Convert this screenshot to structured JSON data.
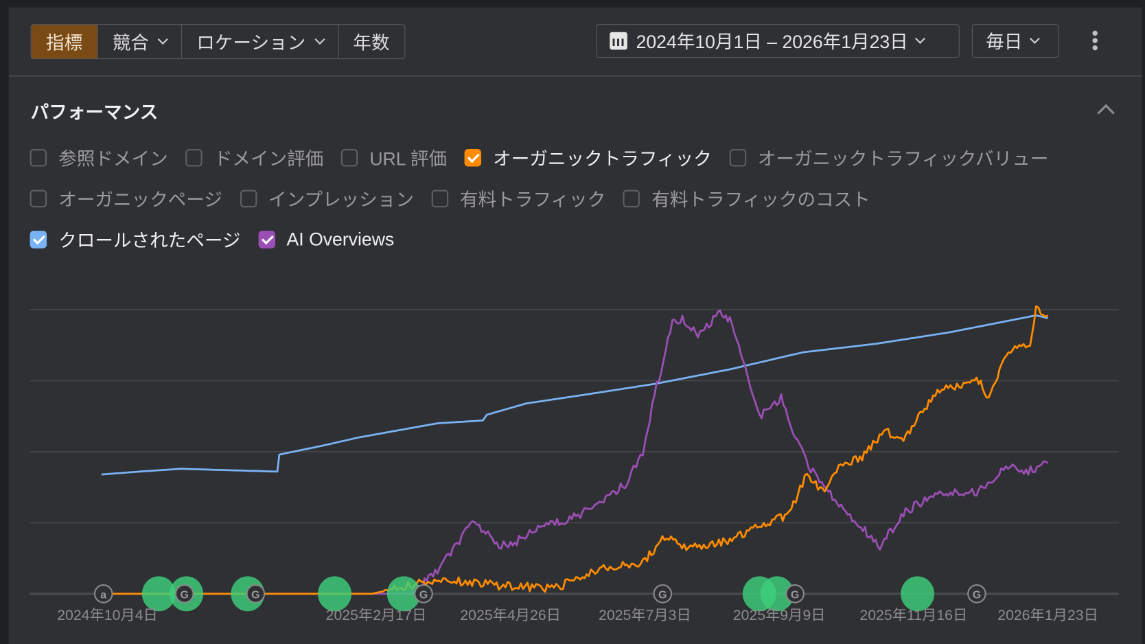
{
  "toolbar": {
    "tabs": [
      {
        "label": "指標",
        "active": true
      },
      {
        "label": "競合",
        "dropdown": true
      },
      {
        "label": "ロケーション",
        "dropdown": true
      },
      {
        "label": "年数"
      }
    ],
    "date_range": "2024年10月1日 – 2026年1月23日",
    "interval": "毎日",
    "icons": {
      "calendar": "calendar-icon",
      "more": "more-vertical-icon"
    }
  },
  "section": {
    "title": "パフォーマンス"
  },
  "metrics": [
    [
      {
        "label": "参照ドメイン",
        "checked": false
      },
      {
        "label": "ドメイン評価",
        "checked": false
      },
      {
        "label": "URL 評価",
        "checked": false
      },
      {
        "label": "オーガニックトラフィック",
        "checked": true,
        "color": "#ff8c00"
      },
      {
        "label": "オーガニックトラフィックバリュー",
        "checked": false
      }
    ],
    [
      {
        "label": "オーガニックページ",
        "checked": false
      },
      {
        "label": "インプレッション",
        "checked": false
      },
      {
        "label": "有料トラフィック",
        "checked": false
      },
      {
        "label": "有料トラフィックのコスト",
        "checked": false
      }
    ],
    [
      {
        "label": "クロールされたページ",
        "checked": true,
        "color": "#7ab3f5"
      },
      {
        "label": "AI Overviews",
        "checked": true,
        "color": "#9b4fb5"
      }
    ]
  ],
  "chart_data": {
    "type": "line",
    "x_range": [
      "2024-10-01",
      "2026-01-23"
    ],
    "ylim": [
      0,
      100
    ],
    "y_scale_note": "relative",
    "grid": true,
    "xticks": [
      {
        "date": "2024-10-04",
        "label": "2024年10月4日"
      },
      {
        "date": "2025-02-17",
        "label": "2025年2月17日"
      },
      {
        "date": "2025-04-26",
        "label": "2025年4月26日"
      },
      {
        "date": "2025-07-03",
        "label": "2025年7月3日"
      },
      {
        "date": "2025-09-09",
        "label": "2025年9月9日"
      },
      {
        "date": "2025-11-16",
        "label": "2025年11月16日"
      },
      {
        "date": "2026-01-23",
        "label": "2026年1月23日"
      }
    ],
    "series": [
      {
        "name": "クロールされたページ",
        "color": "#7ab3f5",
        "points": [
          [
            "2024-10-01",
            42
          ],
          [
            "2024-10-20",
            43
          ],
          [
            "2024-11-10",
            44
          ],
          [
            "2024-12-29",
            43
          ],
          [
            "2024-12-30",
            49
          ],
          [
            "2025-01-20",
            52
          ],
          [
            "2025-02-08",
            55
          ],
          [
            "2025-03-20",
            60
          ],
          [
            "2025-04-12",
            61
          ],
          [
            "2025-04-14",
            63
          ],
          [
            "2025-05-04",
            67
          ],
          [
            "2025-06-02",
            70
          ],
          [
            "2025-07-09",
            74
          ],
          [
            "2025-08-15",
            79
          ],
          [
            "2025-09-21",
            85
          ],
          [
            "2025-10-28",
            88
          ],
          [
            "2025-12-04",
            92
          ],
          [
            "2026-01-17",
            98
          ],
          [
            "2026-01-23",
            97
          ]
        ]
      },
      {
        "name": "AI Overviews",
        "color": "#9b4fb5",
        "points": [
          [
            "2024-10-01",
            0
          ],
          [
            "2025-03-07",
            0
          ],
          [
            "2025-03-20",
            8
          ],
          [
            "2025-04-08",
            26
          ],
          [
            "2025-04-19",
            17
          ],
          [
            "2025-04-26",
            17
          ],
          [
            "2025-05-11",
            24
          ],
          [
            "2025-05-26",
            26
          ],
          [
            "2025-06-10",
            32
          ],
          [
            "2025-06-24",
            39
          ],
          [
            "2025-07-02",
            50
          ],
          [
            "2025-07-09",
            73
          ],
          [
            "2025-07-17",
            95
          ],
          [
            "2025-07-22",
            97
          ],
          [
            "2025-07-31",
            91
          ],
          [
            "2025-08-10",
            99
          ],
          [
            "2025-08-15",
            96
          ],
          [
            "2025-08-23",
            80
          ],
          [
            "2025-08-30",
            62
          ],
          [
            "2025-09-10",
            69
          ],
          [
            "2025-09-17",
            55
          ],
          [
            "2025-09-25",
            44
          ],
          [
            "2025-10-06",
            34
          ],
          [
            "2025-10-17",
            26
          ],
          [
            "2025-10-30",
            17
          ],
          [
            "2025-11-12",
            29
          ],
          [
            "2025-11-27",
            35
          ],
          [
            "2025-12-19",
            36
          ],
          [
            "2026-01-04",
            46
          ],
          [
            "2026-01-12",
            43
          ],
          [
            "2026-01-23",
            46
          ]
        ]
      },
      {
        "name": "オーガニックトラフィック",
        "color": "#ff8c00",
        "points": [
          [
            "2024-10-01",
            0
          ],
          [
            "2025-02-15",
            0
          ],
          [
            "2025-03-13",
            4
          ],
          [
            "2025-03-24",
            5
          ],
          [
            "2025-04-19",
            3
          ],
          [
            "2025-05-18",
            2
          ],
          [
            "2025-05-26",
            4
          ],
          [
            "2025-06-10",
            8.5
          ],
          [
            "2025-06-24",
            10.5
          ],
          [
            "2025-07-02",
            11
          ],
          [
            "2025-07-13",
            20
          ],
          [
            "2025-07-24",
            16
          ],
          [
            "2025-08-15",
            19
          ],
          [
            "2025-08-30",
            24
          ],
          [
            "2025-09-14",
            28
          ],
          [
            "2025-09-23",
            42
          ],
          [
            "2025-10-02",
            35
          ],
          [
            "2025-10-08",
            44
          ],
          [
            "2025-10-21",
            48
          ],
          [
            "2025-11-01",
            57
          ],
          [
            "2025-11-12",
            55
          ],
          [
            "2025-11-27",
            71
          ],
          [
            "2025-12-19",
            75
          ],
          [
            "2025-12-24",
            69
          ],
          [
            "2026-01-03",
            86
          ],
          [
            "2026-01-14",
            88
          ],
          [
            "2026-01-17",
            100
          ],
          [
            "2026-01-23",
            98
          ]
        ]
      }
    ],
    "annotations": [
      {
        "date": "2024-10-02",
        "type": "a-marker"
      },
      {
        "date": "2024-10-30",
        "type": "green-event"
      },
      {
        "date": "2024-11-13",
        "type": "green-event"
      },
      {
        "date": "2024-11-12",
        "type": "google-update"
      },
      {
        "date": "2024-12-14",
        "type": "green-event"
      },
      {
        "date": "2024-12-18",
        "type": "google-update"
      },
      {
        "date": "2025-01-27",
        "type": "green-event"
      },
      {
        "date": "2025-03-03",
        "type": "green-event"
      },
      {
        "date": "2025-03-13",
        "type": "google-update"
      },
      {
        "date": "2025-07-12",
        "type": "google-update"
      },
      {
        "date": "2025-08-30",
        "type": "green-event"
      },
      {
        "date": "2025-09-08",
        "type": "green-event"
      },
      {
        "date": "2025-09-17",
        "type": "google-update"
      },
      {
        "date": "2025-11-18",
        "type": "green-event"
      },
      {
        "date": "2025-12-18",
        "type": "google-update"
      }
    ],
    "marker_glyphs": {
      "a-marker": "a",
      "google-update": "G"
    }
  }
}
